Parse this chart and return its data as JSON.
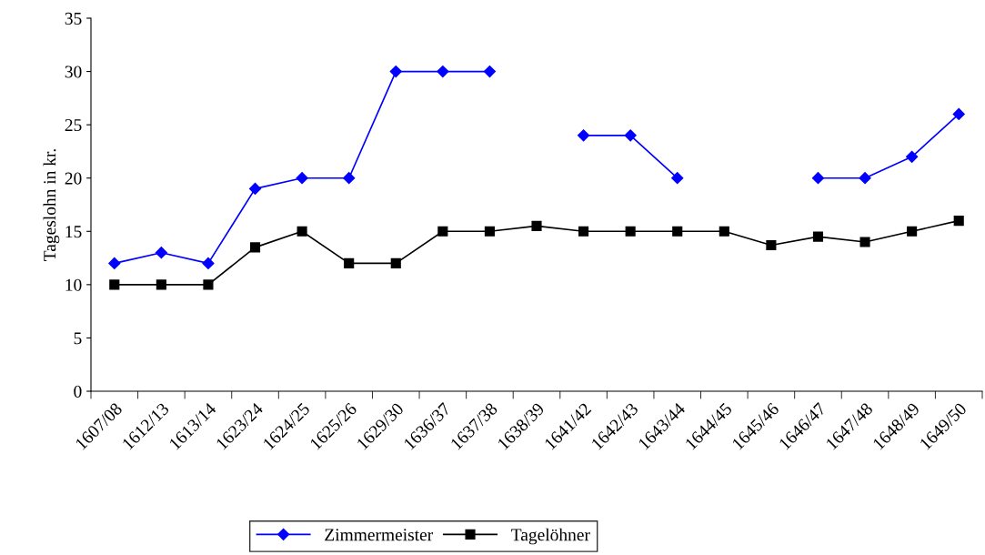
{
  "chart_data": {
    "type": "line",
    "ylabel": "Tageslohn in kr.",
    "categories": [
      "1607/08",
      "1612/13",
      "1613/14",
      "1623/24",
      "1624/25",
      "1625/26",
      "1629/30",
      "1636/37",
      "1637/38",
      "1638/39",
      "1641/42",
      "1642/43",
      "1643/44",
      "1644/45",
      "1645/46",
      "1646/47",
      "1647/48",
      "1648/49",
      "1649/50"
    ],
    "series": [
      {
        "name": "Zimmermeister",
        "color": "#0000ff",
        "marker": "diamond",
        "values": [
          12,
          13,
          12,
          19,
          20,
          20,
          30,
          30,
          30,
          null,
          24,
          24,
          20,
          null,
          null,
          20,
          20,
          22,
          26
        ]
      },
      {
        "name": "Tagelöhner",
        "color": "#000000",
        "marker": "square",
        "values": [
          10,
          10,
          10,
          13.5,
          15,
          12,
          12,
          15,
          15,
          15.5,
          15,
          15,
          15,
          15,
          13.7,
          14.5,
          14,
          15,
          16
        ]
      }
    ],
    "ylim": [
      0,
      35
    ],
    "yticks": [
      0,
      5,
      10,
      15,
      20,
      25,
      30,
      35
    ],
    "grid": false,
    "legend": "bottom",
    "line_style": "solid"
  }
}
